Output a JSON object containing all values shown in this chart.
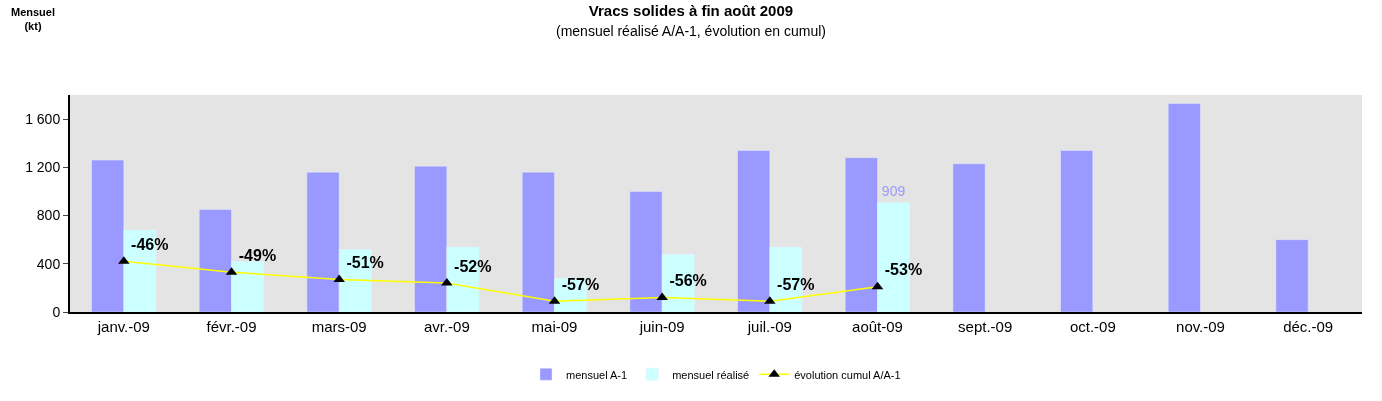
{
  "chart_data": {
    "type": "bar",
    "title": "Vracs solides à fin août 2009",
    "subtitle": "(mensuel réalisé A/A-1, évolution en cumul)",
    "annotations": [
      "Mensuel\n(kt)"
    ],
    "categories": [
      "janv.-09",
      "févr.-09",
      "mars-09",
      "avr.-09",
      "mai-09",
      "juin-09",
      "juil.-09",
      "août-09",
      "sept.-09",
      "oct.-09",
      "nov.-09",
      "déc.-09"
    ],
    "series": [
      {
        "name": "mensuel A-1",
        "color": "#9999ff",
        "values": [
          1260,
          850,
          1160,
          1210,
          1160,
          1000,
          1340,
          1280,
          1230,
          1340,
          1730,
          600
        ]
      },
      {
        "name": "mensuel réalisé",
        "color": "#ccffff",
        "values": [
          680,
          420,
          520,
          540,
          280,
          480,
          540,
          909,
          null,
          null,
          null,
          null
        ],
        "value_labels": [
          null,
          null,
          null,
          null,
          null,
          null,
          null,
          "909",
          null,
          null,
          null,
          null
        ]
      },
      {
        "name": "évolution cumul A/A-1",
        "type": "line",
        "axis": "y2",
        "color": "#ffff00",
        "marker": "triangle",
        "values": [
          -46,
          -49,
          -51,
          -52,
          -57,
          -56,
          -57,
          -53,
          null,
          null,
          null,
          null
        ],
        "value_labels": [
          "-46%",
          "-49%",
          "-51%",
          "-52%",
          "-57%",
          "-56%",
          "-57%",
          "-53%",
          null,
          null,
          null,
          null
        ]
      }
    ],
    "ylim": [
      0,
      1800
    ],
    "yticks": [
      0,
      400,
      800,
      {
        "value": 1200,
        "label": "1 200"
      },
      {
        "value": 1600,
        "label": "1 600"
      }
    ],
    "y2lim": [
      -60,
      0
    ],
    "grid": false,
    "legend": "bottom"
  }
}
